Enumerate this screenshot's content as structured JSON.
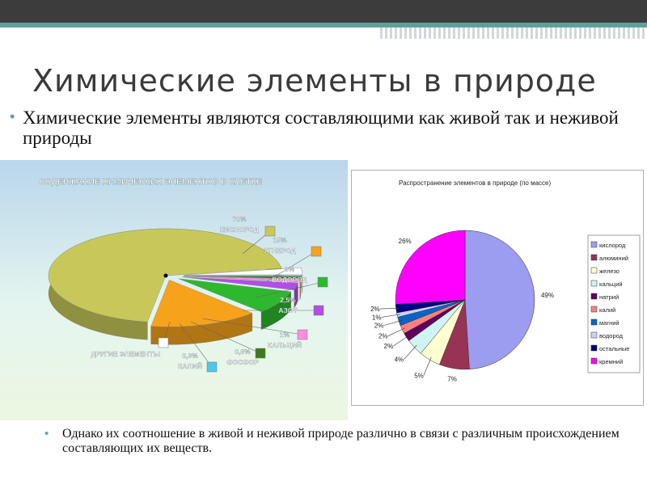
{
  "slide": {
    "title": "Химические элементы в природе",
    "bullet1": "Химические элементы являются составляющими как живой так и неживой природы",
    "bullet2": "Однако их соотношение в живой и неживой природе различно в связи с различным происхождением составляющих их веществ.",
    "colors": {
      "topbar": "#3c3c3c",
      "accent": "#5fa09a"
    }
  },
  "chart_data": [
    {
      "type": "pie",
      "title": "СОДЕРЖАНИЕ ХИМИЧЕСКИХ ЭЛЕМЕНТОВ В КЛЕТКЕ",
      "style": "3d-exploded",
      "slices": [
        {
          "label": "КИСЛОРОД",
          "value_label": "70%",
          "value": 70,
          "color": "#c8c85a"
        },
        {
          "label": "УГЛЕРОД",
          "value_label": "15%",
          "value": 15,
          "color": "#f7a21b"
        },
        {
          "label": "ВОДОРОД",
          "value_label": "8%",
          "value": 8,
          "color": "#2db82d"
        },
        {
          "label": "АЗОТ",
          "value_label": "2,5%",
          "value": 2.5,
          "color": "#b14de8"
        },
        {
          "label": "КАЛЬЦИЙ",
          "value_label": "1%",
          "value": 1,
          "color": "#ff8de0"
        },
        {
          "label": "ФОСФОР",
          "value_label": "0,8%",
          "value": 0.8,
          "color": "#3e7a1b"
        },
        {
          "label": "КАЛИЙ",
          "value_label": "0,3%",
          "value": 0.3,
          "color": "#4fc6ee"
        },
        {
          "label": "ДРУГИЕ ЭЛЕМЕНТЫ",
          "value_label": "",
          "value": 2.4,
          "color": "#ffffff"
        }
      ]
    },
    {
      "type": "pie",
      "title": "Распространение элементов в природе (по массе)",
      "legend_position": "right",
      "slices": [
        {
          "label": "кислород",
          "value_label": "49%",
          "value": 49,
          "color": "#9c9cf0"
        },
        {
          "label": "алюминий",
          "value_label": "7%",
          "value": 7,
          "color": "#993355"
        },
        {
          "label": "железо",
          "value_label": "5%",
          "value": 5,
          "color": "#ffffd0"
        },
        {
          "label": "кальций",
          "value_label": "4%",
          "value": 4,
          "color": "#d0f4f4"
        },
        {
          "label": "натрий",
          "value_label": "2%",
          "value": 2,
          "color": "#600060"
        },
        {
          "label": "калий",
          "value_label": "2%",
          "value": 2,
          "color": "#ff8080"
        },
        {
          "label": "магний",
          "value_label": "2%",
          "value": 2,
          "color": "#0066cc"
        },
        {
          "label": "водород",
          "value_label": "1%",
          "value": 1,
          "color": "#cdd0ff"
        },
        {
          "label": "остальные",
          "value_label": "2%",
          "value": 2,
          "color": "#000080"
        },
        {
          "label": "кремний",
          "value_label": "26%",
          "value": 26,
          "color": "#ff00ff"
        }
      ]
    }
  ]
}
